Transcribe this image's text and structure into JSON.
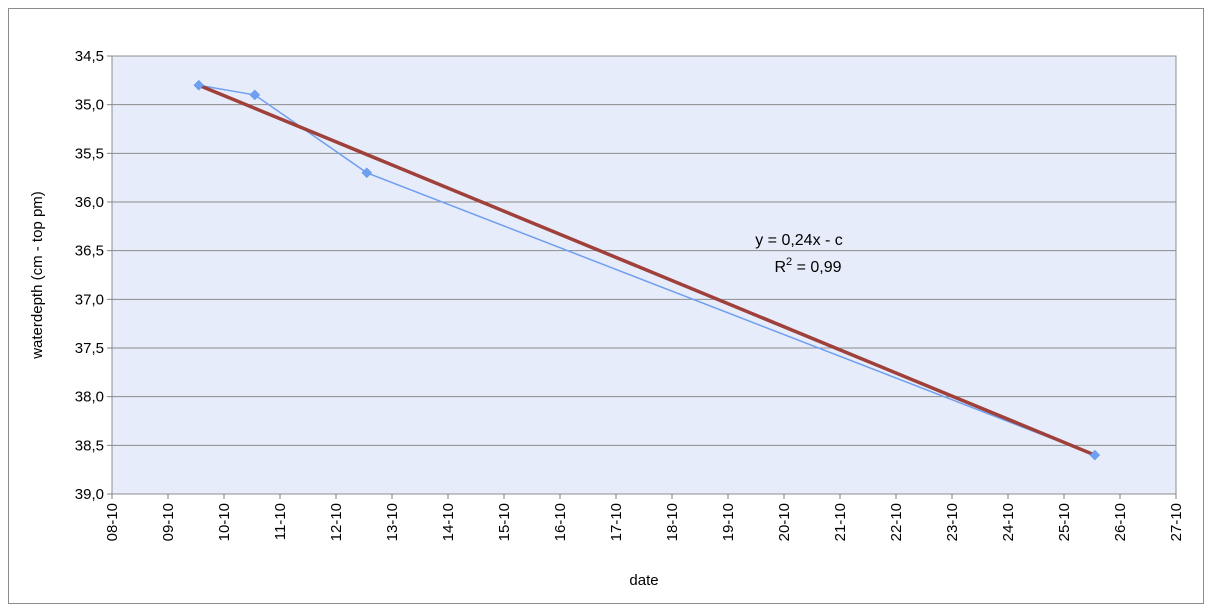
{
  "chart_data": {
    "type": "line",
    "xlabel": "date",
    "ylabel": "waterdepth (cm - top pm)",
    "x_tick_labels": [
      "08-10",
      "09-10",
      "10-10",
      "11-10",
      "12-10",
      "13-10",
      "14-10",
      "15-10",
      "16-10",
      "17-10",
      "18-10",
      "19-10",
      "20-10",
      "21-10",
      "22-10",
      "23-10",
      "24-10",
      "25-10",
      "26-10",
      "27-10"
    ],
    "y_tick_labels": [
      "34,5",
      "35,0",
      "35,5",
      "36,0",
      "36,5",
      "37,0",
      "37,5",
      "38,0",
      "38,5",
      "39,0"
    ],
    "ylim": [
      34.5,
      39.0
    ],
    "y_inverted": true,
    "grid": "horizontal",
    "legend": "none",
    "series": [
      {
        "x": [
          "09-10",
          "10-10",
          "12-10",
          "25-10"
        ],
        "y": [
          34.8,
          34.9,
          35.7,
          38.6
        ],
        "color": "#6f9ff0",
        "marker": "diamond"
      }
    ],
    "trendline": {
      "x": [
        "09-10",
        "25-10"
      ],
      "y": [
        34.8,
        38.6
      ],
      "color": "#a0403a"
    },
    "annotation": {
      "equation": "y = 0,24x - c",
      "r2_label": "R",
      "r2_sup": "2",
      "r2_value": " = 0,99"
    },
    "colors": {
      "plot_bg": "#e6ecfa",
      "grid": "#8c8c8c"
    }
  }
}
